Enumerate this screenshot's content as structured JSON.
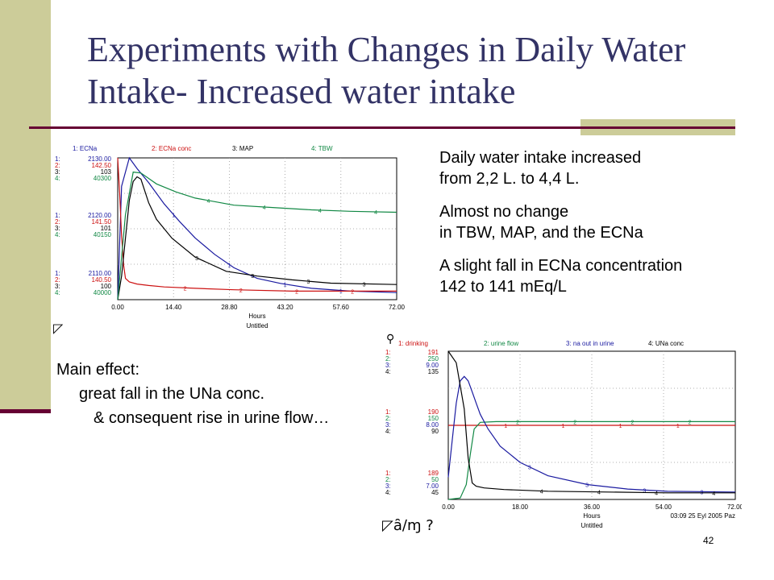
{
  "slide": {
    "title": "Experiments with Changes in Daily Water Intake- Increased water intake",
    "slide_number": "42",
    "right_paragraphs": [
      {
        "lines": [
          "Daily water intake increased",
          "from 2,2 L. to 4,4 L."
        ]
      },
      {
        "lines": [
          "Almost no change",
          "in TBW, MAP, and the ECNa"
        ]
      },
      {
        "lines": [
          "A slight fall in ECNa concentration",
          "142 to 141 mEq/L"
        ]
      }
    ],
    "main_effect": {
      "line1": "Main effect:",
      "line2": "great fall in the UNa conc.",
      "line3": "& consequent rise in urine flow…"
    },
    "glyph_marks": {
      "left": "◸",
      "bottom": "◸ȃ∕ɱ ?",
      "pin": "⚲"
    },
    "colors": {
      "title": "#333366",
      "sidebar": "#cccc99",
      "rule": "#660033"
    }
  },
  "chart_data": [
    {
      "type": "line",
      "legend": [
        "1: ECNa",
        "2: ECNa conc",
        "3: MAP",
        "4: TBW"
      ],
      "colors": [
        "#1a1aa0",
        "#cc1111",
        "#000000",
        "#118844"
      ],
      "axis_labels": [
        [
          "1:",
          "2130.00",
          "2:",
          "142.50",
          "3:",
          "103",
          "4:",
          "40300"
        ],
        [
          "1:",
          "2120.00",
          "2:",
          "141.50",
          "3:",
          "101",
          "4:",
          "40150"
        ],
        [
          "1:",
          "2110.00",
          "2:",
          "140.50",
          "3:",
          "100",
          "4:",
          "40000"
        ]
      ],
      "x_ticks": [
        "0.00",
        "14.40",
        "28.80",
        "43.20",
        "57.60",
        "72.00"
      ],
      "xlim": [
        0,
        72
      ],
      "xlabel": "Hours",
      "footer": "Untitled",
      "series": [
        {
          "name": "ECNa",
          "ylim": [
            2110,
            2130
          ],
          "x": [
            0,
            1,
            3,
            5,
            8,
            12,
            16,
            20,
            25,
            30,
            36,
            42,
            50,
            60,
            72
          ],
          "values": [
            2110,
            2126,
            2130,
            2128.5,
            2126.5,
            2123.5,
            2121,
            2118.7,
            2116.4,
            2114.5,
            2113,
            2112.3,
            2111.6,
            2111.2,
            2111
          ]
        },
        {
          "name": "ECNa conc",
          "ylim": [
            140.5,
            142.5
          ],
          "x": [
            0,
            0.5,
            1,
            1.5,
            2,
            3,
            5,
            8,
            12,
            20,
            30,
            45,
            60,
            72
          ],
          "values": [
            142.5,
            142,
            141.4,
            141,
            140.8,
            140.75,
            140.72,
            140.7,
            140.68,
            140.66,
            140.64,
            140.62,
            140.62,
            140.62
          ]
        },
        {
          "name": "MAP",
          "ylim": [
            100,
            103
          ],
          "x": [
            0,
            1,
            2,
            3,
            4,
            5,
            6,
            7,
            8,
            10,
            14,
            20,
            28,
            36,
            45,
            55,
            72
          ],
          "values": [
            100,
            100.5,
            101.3,
            102.1,
            102.5,
            102.6,
            102.55,
            102.3,
            102.05,
            101.7,
            101.3,
            100.9,
            100.6,
            100.5,
            100.42,
            100.35,
            100.32
          ]
        },
        {
          "name": "TBW",
          "ylim": [
            40000,
            40300
          ],
          "x": [
            0,
            2,
            4,
            6,
            10,
            15,
            20,
            30,
            40,
            50,
            60,
            72
          ],
          "values": [
            40000,
            40180,
            40270,
            40268,
            40245,
            40228,
            40215,
            40200,
            40195,
            40190,
            40187,
            40185
          ]
        }
      ]
    },
    {
      "type": "line",
      "legend": [
        "1: drinking",
        "2: urine flow",
        "3: na out in urine",
        "4: UNa conc"
      ],
      "colors": [
        "#cc1111",
        "#118844",
        "#1a1aa0",
        "#000000"
      ],
      "axis_labels": [
        [
          "1:",
          "191",
          "2:",
          "250",
          "3:",
          "9.00",
          "4:",
          "135"
        ],
        [
          "1:",
          "190",
          "2:",
          "150",
          "3:",
          "8.00",
          "4:",
          "90"
        ],
        [
          "1:",
          "189",
          "2:",
          "50",
          "3:",
          "7.00",
          "4:",
          "45"
        ]
      ],
      "x_ticks": [
        "0.00",
        "18.00",
        "36.00",
        "54.00",
        "72.00"
      ],
      "xlim": [
        0,
        72
      ],
      "xlabel": "Hours",
      "footer": "Untitled",
      "stamp": "03:09   25 Eyl 2005 Paz",
      "series": [
        {
          "name": "drinking",
          "ylim": [
            189,
            191
          ],
          "x": [
            0,
            72
          ],
          "values": [
            190,
            190
          ]
        },
        {
          "name": "urine flow",
          "ylim": [
            50,
            250
          ],
          "x": [
            0,
            3,
            4.5,
            5.5,
            6.5,
            8,
            12,
            20,
            40,
            72
          ],
          "values": [
            50,
            52,
            70,
            110,
            145,
            154,
            155,
            155,
            155,
            155
          ]
        },
        {
          "name": "na out in urine",
          "ylim": [
            7,
            9
          ],
          "x": [
            0,
            1,
            2,
            3,
            4,
            5,
            6,
            7,
            8,
            10,
            13,
            18,
            25,
            35,
            45,
            55,
            72
          ],
          "values": [
            7.3,
            7.8,
            8.3,
            8.6,
            8.66,
            8.6,
            8.45,
            8.3,
            8.15,
            7.95,
            7.72,
            7.5,
            7.32,
            7.2,
            7.14,
            7.11,
            7.1
          ]
        },
        {
          "name": "UNa conc",
          "ylim": [
            45,
            135
          ],
          "x": [
            0,
            2,
            4,
            5,
            6,
            7,
            9,
            14,
            25,
            40,
            55,
            72
          ],
          "values": [
            135,
            128,
            100,
            70,
            55,
            53,
            52,
            51,
            50,
            49.5,
            49,
            49
          ]
        }
      ]
    }
  ]
}
